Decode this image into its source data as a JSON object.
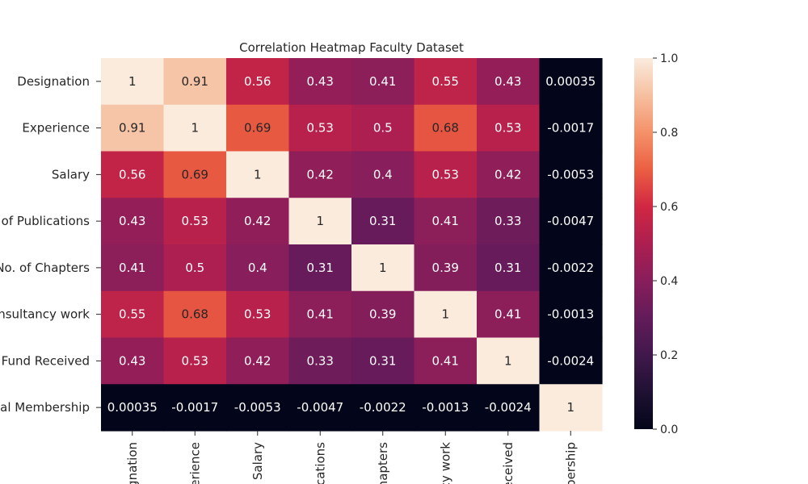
{
  "chart_data": {
    "type": "heatmap",
    "title": "Correlation Heatmap Faculty Dataset",
    "xlabel": "",
    "ylabel": "",
    "row_labels": [
      "Designation",
      "Experience",
      "Salary",
      "o. of Publications",
      "No. of Chapters",
      "consultancy work",
      "Fund Received",
      "onal Membership"
    ],
    "col_labels": [
      "gnation",
      "erience",
      "Salary",
      "ications",
      "hapters",
      "cy work",
      "eceived",
      "bership"
    ],
    "values": [
      [
        1,
        0.91,
        0.56,
        0.43,
        0.41,
        0.55,
        0.43,
        0.00035
      ],
      [
        0.91,
        1,
        0.69,
        0.53,
        0.5,
        0.68,
        0.53,
        -0.0017
      ],
      [
        0.56,
        0.69,
        1,
        0.42,
        0.4,
        0.53,
        0.42,
        -0.0053
      ],
      [
        0.43,
        0.53,
        0.42,
        1,
        0.31,
        0.41,
        0.33,
        -0.0047
      ],
      [
        0.41,
        0.5,
        0.4,
        0.31,
        1,
        0.39,
        0.31,
        -0.0022
      ],
      [
        0.55,
        0.68,
        0.53,
        0.41,
        0.39,
        1,
        0.41,
        -0.0013
      ],
      [
        0.43,
        0.53,
        0.42,
        0.33,
        0.31,
        0.41,
        1,
        -0.0024
      ],
      [
        0.00035,
        -0.0017,
        -0.0053,
        -0.0047,
        -0.0022,
        -0.0013,
        -0.0024,
        1
      ]
    ],
    "cell_text": [
      [
        "1",
        "0.91",
        "0.56",
        "0.43",
        "0.41",
        "0.55",
        "0.43",
        "0.00035"
      ],
      [
        "0.91",
        "1",
        "0.69",
        "0.53",
        "0.5",
        "0.68",
        "0.53",
        "-0.0017"
      ],
      [
        "0.56",
        "0.69",
        "1",
        "0.42",
        "0.4",
        "0.53",
        "0.42",
        "-0.0053"
      ],
      [
        "0.43",
        "0.53",
        "0.42",
        "1",
        "0.31",
        "0.41",
        "0.33",
        "-0.0047"
      ],
      [
        "0.41",
        "0.5",
        "0.4",
        "0.31",
        "1",
        "0.39",
        "0.31",
        "-0.0022"
      ],
      [
        "0.55",
        "0.68",
        "0.53",
        "0.41",
        "0.39",
        "1",
        "0.41",
        "-0.0013"
      ],
      [
        "0.43",
        "0.53",
        "0.42",
        "0.33",
        "0.31",
        "0.41",
        "1",
        "-0.0024"
      ],
      [
        "0.00035",
        "-0.0017",
        "-0.0053",
        "-0.0047",
        "-0.0022",
        "-0.0013",
        "-0.0024",
        "1"
      ]
    ],
    "colormap": "rocket",
    "colorbar": {
      "range": [
        0.0,
        1.0
      ],
      "ticks": [
        "0.0",
        "0.2",
        "0.4",
        "0.6",
        "0.8",
        "1.0"
      ]
    }
  }
}
